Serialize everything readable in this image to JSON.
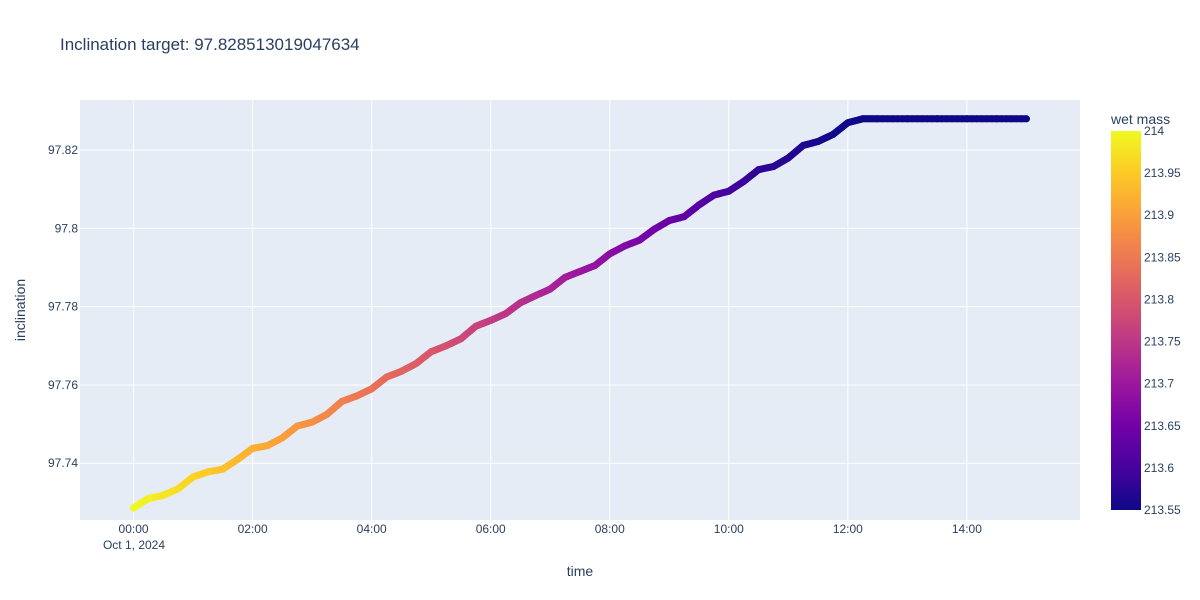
{
  "chart_data": {
    "type": "scatter",
    "mode": "lines+markers",
    "title": "Inclination target: 97.828513019047634",
    "xlabel": "time",
    "ylabel": "inclination",
    "x_tick_labels": [
      "00:00",
      "02:00",
      "04:00",
      "06:00",
      "08:00",
      "10:00",
      "12:00",
      "14:00"
    ],
    "x_tick_hours": [
      0,
      2,
      4,
      6,
      8,
      10,
      12,
      14
    ],
    "x_date_label": "Oct 1, 2024",
    "x_range_hours": [
      -0.9,
      15.9
    ],
    "y_tick_labels": [
      "97.74",
      "97.76",
      "97.78",
      "97.8",
      "97.82"
    ],
    "y_tick_values": [
      97.74,
      97.76,
      97.78,
      97.8,
      97.82
    ],
    "y_range": [
      97.7255,
      97.8328
    ],
    "series": [
      {
        "hours": [
          0.0,
          0.25,
          0.5,
          0.75,
          1.0,
          1.25,
          1.5,
          1.75,
          2.0,
          2.25,
          2.5,
          2.75,
          3.0,
          3.25,
          3.5,
          3.75,
          4.0,
          4.25,
          4.5,
          4.75,
          5.0,
          5.25,
          5.5,
          5.75,
          6.0,
          6.25,
          6.5,
          6.75,
          7.0,
          7.25,
          7.5,
          7.75,
          8.0,
          8.25,
          8.5,
          8.75,
          9.0,
          9.25,
          9.5,
          9.75,
          10.0,
          10.25,
          10.5,
          10.75,
          11.0,
          11.25,
          11.5,
          11.75,
          12.0,
          12.25,
          12.5,
          13.0,
          13.5,
          14.0,
          14.5,
          15.0
        ],
        "inclination": [
          97.7286,
          97.731,
          97.7318,
          97.7335,
          97.7365,
          97.7378,
          97.7385,
          97.741,
          97.7438,
          97.7445,
          97.7465,
          97.7495,
          97.7505,
          97.7525,
          97.7558,
          97.7572,
          97.759,
          97.762,
          97.7635,
          97.7655,
          97.7685,
          97.77,
          97.7718,
          97.775,
          97.7765,
          97.7782,
          97.781,
          97.7828,
          97.7845,
          97.7875,
          97.789,
          97.7905,
          97.7935,
          97.7955,
          97.797,
          97.7998,
          97.802,
          97.803,
          97.806,
          97.8085,
          97.8095,
          97.812,
          97.815,
          97.8158,
          97.818,
          97.8212,
          97.8222,
          97.824,
          97.827,
          97.828,
          97.828,
          97.828,
          97.828,
          97.828,
          97.828,
          97.828
        ],
        "wet_mass": [
          214.0,
          213.99,
          213.98,
          213.97,
          213.96,
          213.95,
          213.94,
          213.93,
          213.92,
          213.91,
          213.9,
          213.89,
          213.88,
          213.87,
          213.86,
          213.85,
          213.84,
          213.83,
          213.82,
          213.81,
          213.8,
          213.79,
          213.78,
          213.77,
          213.76,
          213.75,
          213.74,
          213.73,
          213.72,
          213.71,
          213.7,
          213.69,
          213.68,
          213.67,
          213.66,
          213.65,
          213.64,
          213.63,
          213.62,
          213.61,
          213.6,
          213.59,
          213.58,
          213.575,
          213.57,
          213.565,
          213.56,
          213.555,
          213.552,
          213.55,
          213.55,
          213.55,
          213.55,
          213.55,
          213.55,
          213.55
        ]
      }
    ],
    "colorbar": {
      "title": "wet mass",
      "colorscale": "Plasma",
      "cmin": 213.55,
      "cmax": 214.0,
      "tick_labels": [
        "213.55",
        "213.6",
        "213.65",
        "213.7",
        "213.75",
        "213.8",
        "213.85",
        "213.9",
        "213.95",
        "214"
      ],
      "tick_values": [
        213.55,
        213.6,
        213.65,
        213.7,
        213.75,
        213.8,
        213.85,
        213.9,
        213.95,
        214.0
      ]
    },
    "grid": true,
    "colors": {
      "plot_background": "#e5ecf6",
      "grid": "#ffffff",
      "text": "#2a3f5f",
      "plasma": [
        "#0d0887",
        "#46039f",
        "#7201a8",
        "#9c179e",
        "#bd3786",
        "#d8576b",
        "#ed7953",
        "#fb9f3a",
        "#fdca26",
        "#f0f921"
      ]
    }
  }
}
